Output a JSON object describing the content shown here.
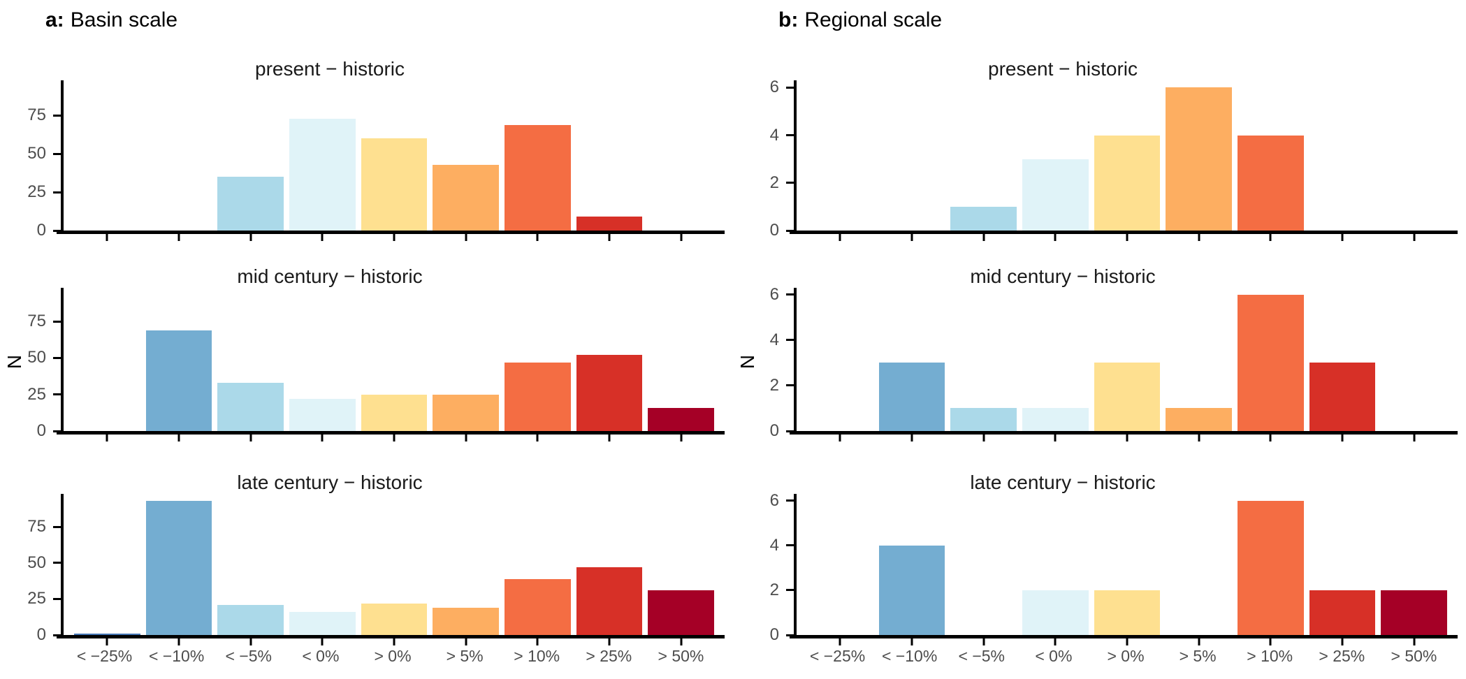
{
  "figure": {
    "columns": [
      {
        "label_bold": "a:",
        "label_text": "Basin scale"
      },
      {
        "label_bold": "b:",
        "label_text": "Regional scale"
      }
    ],
    "ylabel": "N",
    "colors": {
      "axis": "#000000",
      "tick_label": "#4D4D4D",
      "panel_title": "#1A1A1A",
      "background": "#FFFFFF"
    }
  },
  "chart_data": [
    {
      "id": "basin",
      "type": "bar",
      "title": "a: Basin scale",
      "ylabel": "N",
      "xlabel": "",
      "grid": false,
      "legend": "none",
      "categories": [
        "< −25%",
        "< −10%",
        "< −5%",
        "< 0%",
        "> 0%",
        "> 5%",
        "> 10%",
        "> 25%",
        "> 50%"
      ],
      "bar_colors": [
        "#4575B4",
        "#74ADD1",
        "#ABD9E9",
        "#E0F3F8",
        "#FEE090",
        "#FDAE61",
        "#F46D43",
        "#D73027",
        "#A50026"
      ],
      "yticks": [
        0,
        25,
        50,
        75
      ],
      "ylim": [
        0,
        98
      ],
      "panels": [
        {
          "title": "present − historic",
          "values": [
            0,
            0,
            35,
            73,
            60,
            43,
            69,
            9,
            0
          ]
        },
        {
          "title": "mid century − historic",
          "values": [
            0,
            69,
            33,
            22,
            25,
            25,
            47,
            52,
            16
          ]
        },
        {
          "title": "late century − historic",
          "values": [
            1,
            93,
            21,
            16,
            22,
            19,
            39,
            47,
            31
          ]
        }
      ]
    },
    {
      "id": "regional",
      "type": "bar",
      "title": "b: Regional scale",
      "ylabel": "N",
      "xlabel": "",
      "grid": false,
      "legend": "none",
      "categories": [
        "< −25%",
        "< −10%",
        "< −5%",
        "< 0%",
        "> 0%",
        "> 5%",
        "> 10%",
        "> 25%",
        "> 50%"
      ],
      "bar_colors": [
        "#4575B4",
        "#74ADD1",
        "#ABD9E9",
        "#E0F3F8",
        "#FEE090",
        "#FDAE61",
        "#F46D43",
        "#D73027",
        "#A50026"
      ],
      "yticks": [
        0,
        2,
        4,
        6
      ],
      "ylim": [
        0,
        6.3
      ],
      "panels": [
        {
          "title": "present − historic",
          "values": [
            0,
            0,
            1,
            3,
            4,
            6,
            4,
            0,
            0
          ]
        },
        {
          "title": "mid century − historic",
          "values": [
            0,
            3,
            1,
            1,
            3,
            1,
            6,
            3,
            0
          ]
        },
        {
          "title": "late century − historic",
          "values": [
            0,
            4,
            0,
            2,
            2,
            0,
            6,
            2,
            2
          ]
        }
      ]
    }
  ]
}
